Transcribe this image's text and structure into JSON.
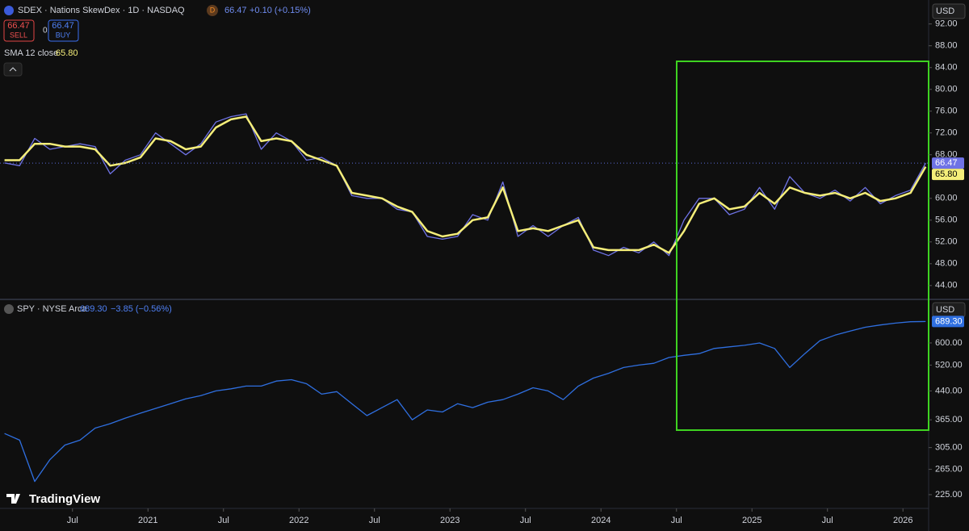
{
  "watermark": "TradingView",
  "chart_data": [
    {
      "type": "line",
      "title": "SDEX · Nations SkewDex · 1D · NASDAQ",
      "interval_badge": "D",
      "price": "66.47",
      "change": "+0.10 (+0.15%)",
      "sell_price": "66.47",
      "sell_label": "SELL",
      "spread": "0.00",
      "buy_price": "66.47",
      "buy_label": "BUY",
      "sma_value": "65.80",
      "currency": "USD",
      "log": false,
      "xlim": [
        2020.02,
        2026.17
      ],
      "ylim": [
        41.6,
        96.4
      ],
      "yticks": [
        {
          "value": 92,
          "label": "92.00"
        },
        {
          "value": 88,
          "label": "88.00"
        },
        {
          "value": 84,
          "label": "84.00"
        },
        {
          "value": 80,
          "label": "80.00"
        },
        {
          "value": 76,
          "label": "76.00"
        },
        {
          "value": 72,
          "label": "72.00"
        },
        {
          "value": 68,
          "label": "68.00"
        },
        {
          "value": 60,
          "label": "60.00"
        },
        {
          "value": 56,
          "label": "56.00"
        },
        {
          "value": 52,
          "label": "52.00"
        },
        {
          "value": 48,
          "label": "48.00"
        },
        {
          "value": 44,
          "label": "44.00"
        }
      ],
      "x": [
        2020.05,
        2020.15,
        2020.25,
        2020.35,
        2020.45,
        2020.55,
        2020.65,
        2020.75,
        2020.85,
        2020.95,
        2021.05,
        2021.15,
        2021.25,
        2021.35,
        2021.45,
        2021.55,
        2021.65,
        2021.75,
        2021.85,
        2021.95,
        2022.05,
        2022.15,
        2022.25,
        2022.35,
        2022.45,
        2022.55,
        2022.65,
        2022.75,
        2022.85,
        2022.95,
        2023.05,
        2023.15,
        2023.25,
        2023.35,
        2023.45,
        2023.55,
        2023.65,
        2023.75,
        2023.85,
        2023.95,
        2024.05,
        2024.15,
        2024.25,
        2024.35,
        2024.45,
        2024.55,
        2024.65,
        2024.75,
        2024.85,
        2024.95,
        2025.05,
        2025.15,
        2025.25,
        2025.35,
        2025.45,
        2025.55,
        2025.65,
        2025.75,
        2025.85,
        2025.95,
        2026.05,
        2026.15
      ],
      "series": [
        {
          "name": "SDEX",
          "color": "#6f73e6",
          "values": [
            66.5,
            66,
            71,
            69,
            69.5,
            70,
            69.5,
            64.5,
            67,
            68,
            72,
            70,
            68,
            70,
            74,
            75,
            75.5,
            69,
            72,
            70.5,
            67,
            67.5,
            66,
            60.5,
            60,
            60,
            58,
            57.5,
            53,
            52.5,
            53,
            57,
            56,
            63,
            53,
            55,
            53,
            55,
            56.5,
            50.5,
            49.5,
            51,
            50,
            52,
            49.5,
            56,
            60,
            60,
            57,
            58,
            62,
            58,
            64,
            61,
            60,
            61.5,
            59.5,
            62,
            59,
            60.5,
            61.5,
            66.47
          ]
        },
        {
          "name": "SMA 12 close",
          "color": "#f5ee7a",
          "values": [
            67,
            67,
            70,
            70,
            69.5,
            69.5,
            69,
            66,
            66.5,
            67.5,
            71,
            70.5,
            69,
            69.5,
            73,
            74.5,
            75,
            70.5,
            71,
            70.5,
            68,
            67,
            66,
            61,
            60.5,
            60,
            58.5,
            57.5,
            54,
            53,
            53.5,
            56,
            56.5,
            62,
            54,
            54.5,
            54,
            55,
            56,
            51,
            50.5,
            50.5,
            50.5,
            51.5,
            50,
            54,
            59,
            60,
            58,
            58.5,
            61,
            59,
            62,
            61,
            60.5,
            61,
            60,
            61,
            59.5,
            60,
            61,
            65.8
          ]
        }
      ]
    },
    {
      "type": "line",
      "title": "SPY · NYSE Arca",
      "price": "689.30",
      "change": "−3.85 (−0.56%)",
      "currency": "USD",
      "log": true,
      "xlim": [
        2020.02,
        2026.17
      ],
      "ylim": [
        208,
        791
      ],
      "xticks": [
        {
          "value": 2020.5,
          "label": "Jul"
        },
        2021,
        {
          "value": 2021.5,
          "label": "Jul"
        },
        2022,
        {
          "value": 2022.5,
          "label": "Jul"
        },
        2023,
        {
          "value": 2023.5,
          "label": "Jul"
        },
        2024,
        {
          "value": 2024.5,
          "label": "Jul"
        },
        2025,
        {
          "value": 2025.5,
          "label": "Jul"
        },
        2026
      ],
      "yticks": [
        {
          "value": 600,
          "label": "600.00"
        },
        {
          "value": 520,
          "label": "520.00"
        },
        {
          "value": 440,
          "label": "440.00"
        },
        {
          "value": 365,
          "label": "365.00"
        },
        {
          "value": 305,
          "label": "305.00"
        },
        {
          "value": 265,
          "label": "265.00"
        },
        {
          "value": 225,
          "label": "225.00"
        }
      ],
      "x": [
        2020.05,
        2020.15,
        2020.25,
        2020.35,
        2020.45,
        2020.55,
        2020.65,
        2020.75,
        2020.85,
        2020.95,
        2021.05,
        2021.15,
        2021.25,
        2021.35,
        2021.45,
        2021.55,
        2021.65,
        2021.75,
        2021.85,
        2021.95,
        2022.05,
        2022.15,
        2022.25,
        2022.35,
        2022.45,
        2022.55,
        2022.65,
        2022.75,
        2022.85,
        2022.95,
        2023.05,
        2023.15,
        2023.25,
        2023.35,
        2023.45,
        2023.55,
        2023.65,
        2023.75,
        2023.85,
        2023.95,
        2024.05,
        2024.15,
        2024.25,
        2024.35,
        2024.45,
        2024.55,
        2024.65,
        2024.75,
        2024.85,
        2024.95,
        2025.05,
        2025.15,
        2025.25,
        2025.35,
        2025.45,
        2025.55,
        2025.65,
        2025.75,
        2025.85,
        2025.95,
        2026.05,
        2026.15
      ],
      "series": [
        {
          "name": "SPY",
          "color": "#2f6fe0",
          "values": [
            334,
            320,
            245,
            282,
            310,
            320,
            346,
            356,
            369,
            381,
            393,
            405,
            418,
            427,
            440,
            446,
            454,
            454,
            469,
            473,
            461,
            431,
            438,
            405,
            375,
            395,
            416,
            365,
            389,
            384,
            405,
            395,
            409,
            416,
            431,
            449,
            440,
            416,
            454,
            478,
            493,
            512,
            520,
            526,
            546,
            554,
            560,
            579,
            585,
            591,
            600,
            579,
            512,
            560,
            609,
            631,
            648,
            664,
            674,
            682,
            688,
            689.3
          ]
        }
      ]
    }
  ]
}
